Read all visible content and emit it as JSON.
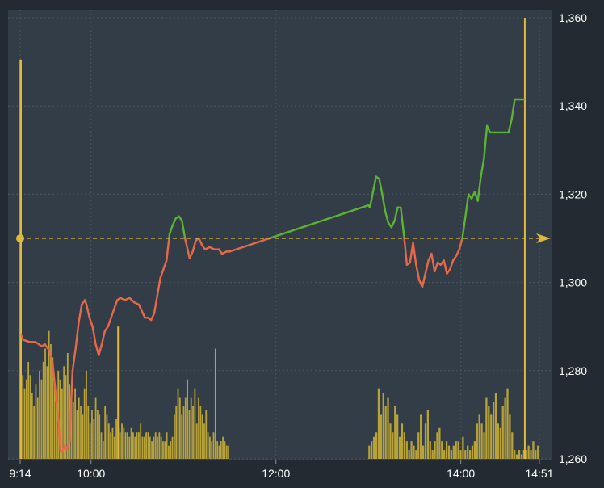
{
  "chart_data": {
    "type": "line",
    "title": "",
    "xlabel": "",
    "ylabel": "",
    "x_ticks": [
      "9:14",
      "10:00",
      "12:00",
      "14:00",
      "14:51"
    ],
    "y_ticks": [
      "1,360",
      "1,340",
      "1,320",
      "1,300",
      "1,280",
      "1,260"
    ],
    "ylim": [
      1260,
      1360
    ],
    "reference_price": 1310,
    "grid": true,
    "colors": {
      "background": "#333d47",
      "grid": "#4a5560",
      "up_line": "#5cb233",
      "down_line": "#e8684a",
      "volume": "#b8a33a",
      "reference": "#e0b93a"
    },
    "price_series": [
      {
        "t": "9:14",
        "v": 1288.5
      },
      {
        "t": "9:16",
        "v": 1287
      },
      {
        "t": "9:20",
        "v": 1286.5
      },
      {
        "t": "9:24",
        "v": 1286.5
      },
      {
        "t": "9:28",
        "v": 1285.5
      },
      {
        "t": "9:30",
        "v": 1286
      },
      {
        "t": "9:33",
        "v": 1284.5
      },
      {
        "t": "9:35",
        "v": 1282
      },
      {
        "t": "9:37",
        "v": 1275
      },
      {
        "t": "9:39",
        "v": 1268
      },
      {
        "t": "9:40",
        "v": 1262
      },
      {
        "t": "9:41",
        "v": 1261.5
      },
      {
        "t": "9:43",
        "v": 1263
      },
      {
        "t": "9:44",
        "v": 1262
      },
      {
        "t": "9:46",
        "v": 1264
      },
      {
        "t": "9:47",
        "v": 1272
      },
      {
        "t": "9:48",
        "v": 1280
      },
      {
        "t": "9:50",
        "v": 1285
      },
      {
        "t": "9:52",
        "v": 1291
      },
      {
        "t": "9:54",
        "v": 1295
      },
      {
        "t": "9:56",
        "v": 1296
      },
      {
        "t": "9:57",
        "v": 1295
      },
      {
        "t": "9:59",
        "v": 1292
      },
      {
        "t": "10:01",
        "v": 1290
      },
      {
        "t": "10:03",
        "v": 1286
      },
      {
        "t": "10:05",
        "v": 1283.5
      },
      {
        "t": "10:07",
        "v": 1286
      },
      {
        "t": "10:09",
        "v": 1289
      },
      {
        "t": "10:11",
        "v": 1290
      },
      {
        "t": "10:13",
        "v": 1292
      },
      {
        "t": "10:15",
        "v": 1294
      },
      {
        "t": "10:17",
        "v": 1296
      },
      {
        "t": "10:19",
        "v": 1296.5
      },
      {
        "t": "10:22",
        "v": 1296
      },
      {
        "t": "10:25",
        "v": 1296.5
      },
      {
        "t": "10:28",
        "v": 1295.5
      },
      {
        "t": "10:31",
        "v": 1295
      },
      {
        "t": "10:33",
        "v": 1293.5
      },
      {
        "t": "10:35",
        "v": 1292
      },
      {
        "t": "10:37",
        "v": 1292
      },
      {
        "t": "10:39",
        "v": 1291.5
      },
      {
        "t": "10:41",
        "v": 1293
      },
      {
        "t": "10:43",
        "v": 1297
      },
      {
        "t": "10:45",
        "v": 1301
      },
      {
        "t": "10:47",
        "v": 1303
      },
      {
        "t": "10:49",
        "v": 1305
      },
      {
        "t": "10:51",
        "v": 1311
      },
      {
        "t": "10:53",
        "v": 1313
      },
      {
        "t": "10:55",
        "v": 1314.5
      },
      {
        "t": "10:57",
        "v": 1315
      },
      {
        "t": "10:59",
        "v": 1314
      },
      {
        "t": "11:01",
        "v": 1310
      },
      {
        "t": "11:03",
        "v": 1307
      },
      {
        "t": "11:04",
        "v": 1305.5
      },
      {
        "t": "11:06",
        "v": 1307
      },
      {
        "t": "11:08",
        "v": 1309.5
      },
      {
        "t": "11:10",
        "v": 1310
      },
      {
        "t": "11:12",
        "v": 1308.5
      },
      {
        "t": "11:14",
        "v": 1307.5
      },
      {
        "t": "11:17",
        "v": 1308
      },
      {
        "t": "11:20",
        "v": 1307.5
      },
      {
        "t": "11:23",
        "v": 1307.5
      },
      {
        "t": "11:25",
        "v": 1306.5
      },
      {
        "t": "11:28",
        "v": 1307
      },
      {
        "t": "11:30",
        "v": 1307
      },
      {
        "t": "13:00",
        "v": 1317.5
      },
      {
        "t": "13:01",
        "v": 1317
      },
      {
        "t": "13:03",
        "v": 1320.5
      },
      {
        "t": "13:05",
        "v": 1324
      },
      {
        "t": "13:07",
        "v": 1323.5
      },
      {
        "t": "13:09",
        "v": 1320
      },
      {
        "t": "13:11",
        "v": 1316
      },
      {
        "t": "13:13",
        "v": 1313.5
      },
      {
        "t": "13:15",
        "v": 1312.5
      },
      {
        "t": "13:17",
        "v": 1314
      },
      {
        "t": "13:19",
        "v": 1317
      },
      {
        "t": "13:21",
        "v": 1317
      },
      {
        "t": "13:23",
        "v": 1311
      },
      {
        "t": "13:25",
        "v": 1304
      },
      {
        "t": "13:27",
        "v": 1304.5
      },
      {
        "t": "13:29",
        "v": 1309
      },
      {
        "t": "13:31",
        "v": 1304
      },
      {
        "t": "13:33",
        "v": 1300.5
      },
      {
        "t": "13:35",
        "v": 1299
      },
      {
        "t": "13:37",
        "v": 1302
      },
      {
        "t": "13:39",
        "v": 1305
      },
      {
        "t": "13:41",
        "v": 1306.5
      },
      {
        "t": "13:43",
        "v": 1302.5
      },
      {
        "t": "13:45",
        "v": 1304.5
      },
      {
        "t": "13:47",
        "v": 1304
      },
      {
        "t": "13:49",
        "v": 1305
      },
      {
        "t": "13:51",
        "v": 1302
      },
      {
        "t": "13:53",
        "v": 1303
      },
      {
        "t": "13:55",
        "v": 1305
      },
      {
        "t": "13:57",
        "v": 1306
      },
      {
        "t": "13:59",
        "v": 1307.5
      },
      {
        "t": "14:01",
        "v": 1310
      },
      {
        "t": "14:03",
        "v": 1315
      },
      {
        "t": "14:05",
        "v": 1320
      },
      {
        "t": "14:07",
        "v": 1319
      },
      {
        "t": "14:09",
        "v": 1320.5
      },
      {
        "t": "14:11",
        "v": 1318.5
      },
      {
        "t": "14:13",
        "v": 1324
      },
      {
        "t": "14:15",
        "v": 1328
      },
      {
        "t": "14:17",
        "v": 1335.5
      },
      {
        "t": "14:19",
        "v": 1334
      },
      {
        "t": "14:25",
        "v": 1334
      },
      {
        "t": "14:31",
        "v": 1334
      },
      {
        "t": "14:33",
        "v": 1337
      },
      {
        "t": "14:35",
        "v": 1341.5
      },
      {
        "t": "14:38",
        "v": 1341.5
      },
      {
        "t": "14:41",
        "v": 1341.5
      }
    ],
    "volume": {
      "ylim": [
        1260,
        1360
      ],
      "morning": [
        1275,
        1279,
        1276,
        1278,
        1282,
        1279,
        1275,
        1272,
        1277,
        1274,
        1280,
        1278,
        1282,
        1285,
        1281,
        1289,
        1286,
        1283,
        1277,
        1275,
        1280,
        1278,
        1276,
        1281,
        1279,
        1284,
        1277,
        1275,
        1273,
        1276,
        1271,
        1274,
        1272,
        1270,
        1276,
        1280,
        1272,
        1268,
        1271,
        1269,
        1274,
        1271,
        1270,
        1266,
        1264,
        1272,
        1270,
        1268,
        1266,
        1267,
        1265,
        1269,
        1267,
        1266,
        1268,
        1267,
        1266,
        1266,
        1265,
        1267,
        1266,
        1265,
        1266,
        1266,
        1268,
        1265,
        1265,
        1266,
        1266,
        1265,
        1264,
        1265,
        1266,
        1265,
        1266,
        1265,
        1264,
        1264,
        1266,
        1263,
        1264,
        1265,
        1270,
        1272,
        1276,
        1274,
        1270,
        1272,
        1274,
        1278,
        1271,
        1274,
        1272,
        1276,
        1268,
        1274,
        1272,
        1270,
        1268,
        1271,
        1266,
        1265,
        1264,
        1266,
        1285,
        1264,
        1263,
        1264,
        1265,
        1264,
        1263,
        1263
      ],
      "afternoon": [
        1263,
        1264,
        1265,
        1266,
        1276,
        1270,
        1275,
        1272,
        1274,
        1268,
        1266,
        1272,
        1270,
        1265,
        1268,
        1266,
        1264,
        1262,
        1264,
        1263,
        1262,
        1266,
        1270,
        1263,
        1268,
        1271,
        1264,
        1262,
        1264,
        1266,
        1267,
        1264,
        1262,
        1264,
        1263,
        1262,
        1263,
        1264,
        1264,
        1262,
        1265,
        1262,
        1263,
        1262,
        1263,
        1264,
        1268,
        1270,
        1268,
        1266,
        1274,
        1272,
        1270,
        1273,
        1275,
        1268,
        1267,
        1272,
        1274,
        1276,
        1270,
        1266,
        1262,
        1261,
        1262,
        1261,
        1262,
        1262,
        1263,
        1262,
        1264,
        1262,
        1263
      ]
    }
  }
}
